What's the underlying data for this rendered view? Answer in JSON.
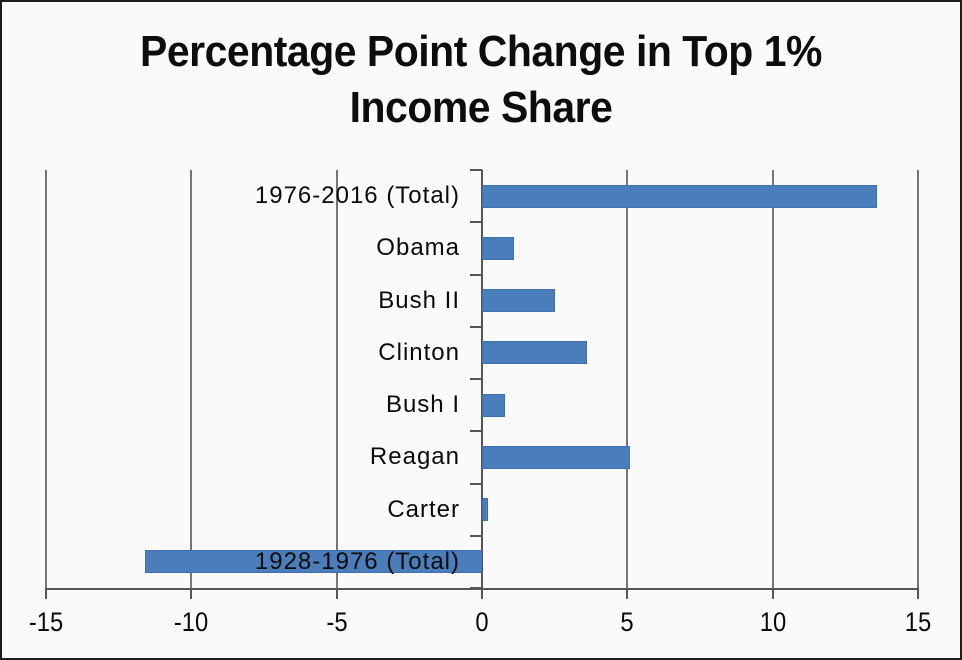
{
  "frame": {
    "background_color": "#fafafa",
    "border_color": "#1d1d1d"
  },
  "chart_data": {
    "type": "bar",
    "orientation": "horizontal",
    "title": "Percentage Point Change in Top 1% Income Share",
    "title_lines": [
      "Percentage Point Change in Top 1%",
      "Income Share"
    ],
    "categories": [
      "1976-2016 (Total)",
      "Obama",
      "Bush II",
      "Clinton",
      "Bush I",
      "Reagan",
      "Carter",
      "1928-1976 (Total)"
    ],
    "values": [
      13.6,
      1.1,
      2.5,
      3.6,
      0.8,
      5.1,
      0.2,
      -11.6
    ],
    "xlabel": "",
    "ylabel": "",
    "xlim": [
      -15,
      15
    ],
    "x_ticks": [
      -15,
      -10,
      -5,
      0,
      5,
      10,
      15
    ],
    "x_tick_labels": [
      "-15",
      "-10",
      "-5",
      "0",
      "5",
      "10",
      "15"
    ],
    "grid": true,
    "legend": false,
    "bar_color": "#4a7ebb",
    "bar_border_color": "#3f6fae",
    "gridline_color": "#757575",
    "axis_color": "#565656",
    "text_color": "#0a0a0a"
  }
}
